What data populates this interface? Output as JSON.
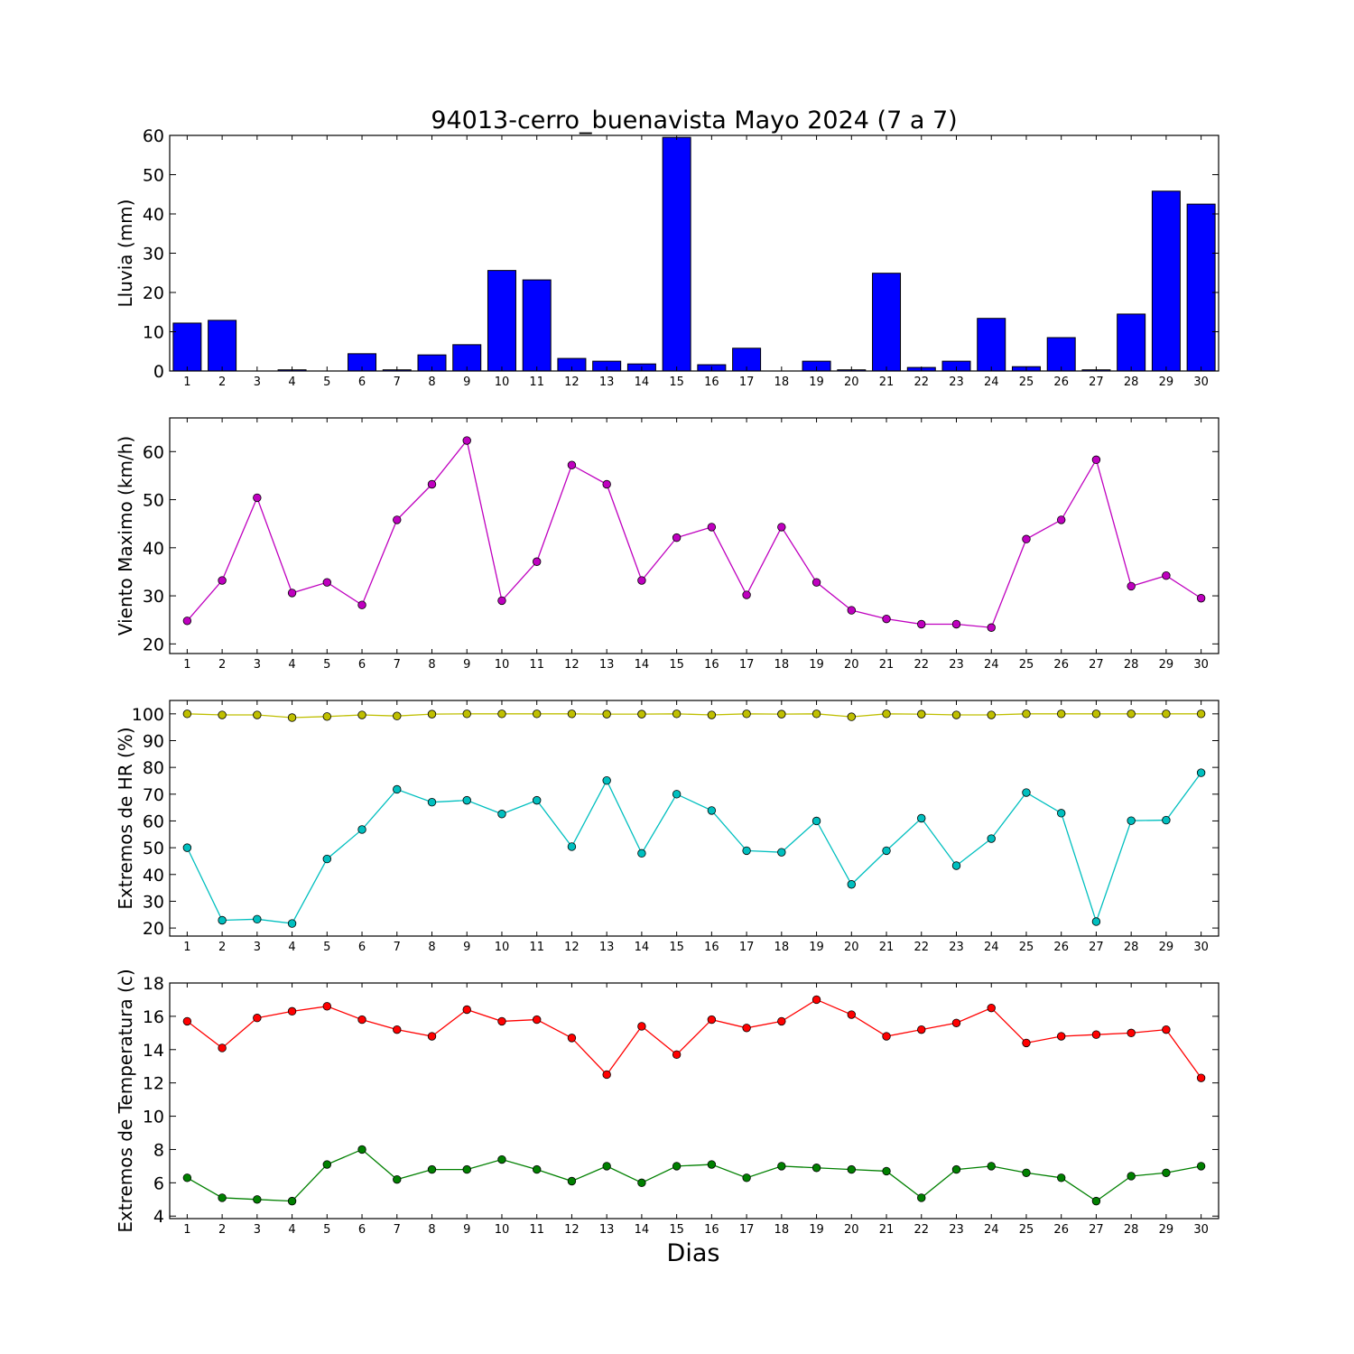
{
  "chart_data": {
    "title": "94013-cerro_buenavista Mayo 2024  (7 a 7)",
    "xlabel": "Dias",
    "days": [
      1,
      2,
      3,
      4,
      5,
      6,
      7,
      8,
      9,
      10,
      11,
      12,
      13,
      14,
      15,
      16,
      17,
      18,
      19,
      20,
      21,
      22,
      23,
      24,
      25,
      26,
      27,
      28,
      29,
      30
    ],
    "panels": [
      {
        "id": "lluvia",
        "type": "bar",
        "ylabel": "Lluvia (mm)",
        "ylim": [
          0,
          60
        ],
        "yticks": [
          0,
          10,
          20,
          30,
          40,
          50,
          60
        ],
        "series": [
          {
            "color": "#0000ff",
            "values": [
              12.2,
              12.9,
              0,
              0.3,
              0,
              4.4,
              0.3,
              4.1,
              6.7,
              25.6,
              23.2,
              3.2,
              2.5,
              1.8,
              59.5,
              1.6,
              5.8,
              0,
              2.5,
              0.3,
              24.9,
              0.9,
              2.5,
              13.4,
              1.1,
              8.5,
              0.3,
              14.5,
              45.8,
              42.5
            ]
          }
        ]
      },
      {
        "id": "viento",
        "type": "line",
        "ylabel": "Viento Maximo (km/h)",
        "ylim": [
          18,
          67
        ],
        "yticks": [
          20,
          30,
          40,
          50,
          60
        ],
        "series": [
          {
            "color": "#bf00bf",
            "values": [
              24.8,
              33.2,
              50.4,
              30.6,
              32.8,
              28.1,
              45.8,
              53.2,
              62.3,
              29.0,
              37.1,
              57.2,
              53.2,
              33.2,
              42.1,
              44.3,
              30.2,
              44.3,
              32.8,
              27.0,
              25.2,
              24.1,
              24.1,
              23.4,
              41.8,
              45.8,
              58.3,
              32.0,
              34.2,
              29.5
            ]
          }
        ]
      },
      {
        "id": "hr",
        "type": "line",
        "ylabel": "Extremos de HR (%)",
        "ylim": [
          17,
          105
        ],
        "yticks": [
          20,
          30,
          40,
          50,
          60,
          70,
          80,
          90,
          100
        ],
        "series": [
          {
            "color": "#bfbf00",
            "values": [
              100,
              99.6,
              99.6,
              98.6,
              99.0,
              99.6,
              99.2,
              99.9,
              100,
              100,
              100,
              100,
              99.9,
              99.9,
              100,
              99.6,
              100,
              99.9,
              100,
              98.9,
              100,
              99.9,
              99.6,
              99.6,
              100,
              100,
              100,
              100,
              100,
              100
            ]
          },
          {
            "color": "#00bfbf",
            "values": [
              50.0,
              22.9,
              23.3,
              21.7,
              45.8,
              56.8,
              71.8,
              67.0,
              67.7,
              62.6,
              67.7,
              50.4,
              75.1,
              47.9,
              70.0,
              63.9,
              48.9,
              48.3,
              60.0,
              36.3,
              48.9,
              61.0,
              43.3,
              53.4,
              70.6,
              62.9,
              22.4,
              60.1,
              60.3,
              78.0
            ]
          }
        ]
      },
      {
        "id": "temperatura",
        "type": "line",
        "ylabel": "Extremos de Temperatura (c)",
        "ylim": [
          3.85,
          18
        ],
        "yticks": [
          4,
          6,
          8,
          10,
          12,
          14,
          16,
          18
        ],
        "series": [
          {
            "color": "#ff0000",
            "values": [
              15.7,
              14.1,
              15.9,
              16.3,
              16.6,
              15.8,
              15.2,
              14.8,
              16.4,
              15.7,
              15.8,
              14.7,
              12.5,
              15.4,
              13.7,
              15.8,
              15.3,
              15.7,
              17.0,
              16.1,
              14.8,
              15.2,
              15.6,
              16.5,
              14.4,
              14.8,
              14.9,
              15.0,
              15.2,
              12.3
            ]
          },
          {
            "color": "#008000",
            "values": [
              6.3,
              5.1,
              5.0,
              4.9,
              7.1,
              8.0,
              6.2,
              6.8,
              6.8,
              7.4,
              6.8,
              6.1,
              7.0,
              6.0,
              7.0,
              7.1,
              6.3,
              7.0,
              6.9,
              6.8,
              6.7,
              5.1,
              6.8,
              7.0,
              6.6,
              6.3,
              4.9,
              6.4,
              6.6,
              7.0
            ]
          }
        ]
      }
    ]
  }
}
